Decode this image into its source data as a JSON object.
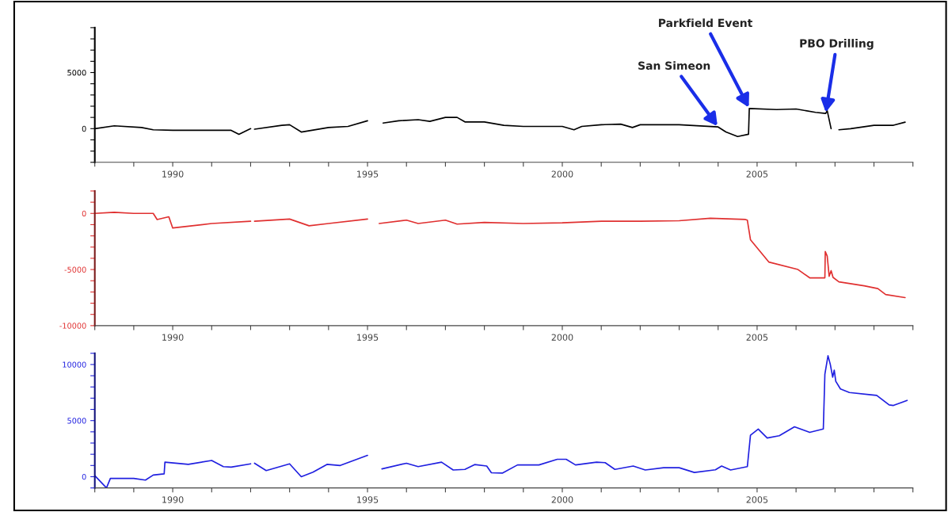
{
  "chart_data": [
    {
      "type": "line",
      "x": [
        1988.0,
        1988.5,
        1989.2,
        1989.5,
        1990.0,
        1991.5,
        1991.7,
        1992.0,
        1992.05,
        1992.1,
        1992.8,
        1993.0,
        1993.3,
        1994.0,
        1994.5,
        1995.0,
        1995.2,
        1995.4,
        1995.8,
        1996.3,
        1996.6,
        1997.0,
        1997.3,
        1997.5,
        1998.0,
        1998.5,
        1999.0,
        2000.0,
        2000.3,
        2000.5,
        2001.0,
        2001.5,
        2001.8,
        2002.0,
        2003.0,
        2004.0,
        2004.2,
        2004.5,
        2004.78,
        2004.8,
        2005.5,
        2006.0,
        2006.5,
        2006.76,
        2006.8,
        2006.9,
        2007.0,
        2007.1,
        2007.4,
        2008.0,
        2008.5,
        2008.8
      ],
      "series": [
        {
          "color": "#000000",
          "values": [
            0,
            250,
            100,
            -100,
            -150,
            -150,
            -500,
            0,
            null,
            -50,
            300,
            350,
            -300,
            100,
            200,
            700,
            null,
            500,
            700,
            800,
            650,
            1000,
            1000,
            600,
            600,
            300,
            200,
            200,
            -100,
            200,
            350,
            400,
            100,
            350,
            350,
            150,
            -300,
            -700,
            -500,
            1800,
            1700,
            1750,
            1450,
            1350,
            1600,
            0,
            null,
            -100,
            0,
            300,
            300,
            580
          ]
        }
      ],
      "xlim": [
        1988,
        2009
      ],
      "ylim": [
        -3000,
        9000
      ],
      "xticks": [
        {
          "value": 1988,
          "label": null
        },
        {
          "value": 1989,
          "label": null
        },
        1990,
        {
          "value": 1991,
          "label": null
        },
        {
          "value": 1992,
          "label": null
        },
        {
          "value": 1993,
          "label": null
        },
        {
          "value": 1994,
          "label": null
        },
        1995,
        {
          "value": 1996,
          "label": null
        },
        {
          "value": 1997,
          "label": null
        },
        {
          "value": 1998,
          "label": null
        },
        {
          "value": 1999,
          "label": null
        },
        2000,
        {
          "value": 2001,
          "label": null
        },
        {
          "value": 2002,
          "label": null
        },
        {
          "value": 2003,
          "label": null
        },
        {
          "value": 2004,
          "label": null
        },
        2005,
        {
          "value": 2006,
          "label": null
        },
        {
          "value": 2007,
          "label": null
        },
        {
          "value": 2008,
          "label": null
        },
        {
          "value": 2009,
          "label": null
        }
      ],
      "yticks": [
        {
          "value": -3000,
          "label": null
        },
        {
          "value": -2000,
          "label": null
        },
        {
          "value": -1000,
          "label": null
        },
        0,
        {
          "value": 1000,
          "label": null
        },
        {
          "value": 2000,
          "label": null
        },
        {
          "value": 3000,
          "label": null
        },
        {
          "value": 4000,
          "label": null
        },
        5000,
        {
          "value": 6000,
          "label": null
        },
        {
          "value": 7000,
          "label": null
        },
        {
          "value": 8000,
          "label": null
        },
        {
          "value": 9000,
          "label": null
        }
      ],
      "annotations": [
        {
          "text": "San Simeon",
          "x": 2004.0,
          "y": 150
        },
        {
          "text": "Parkfield Event",
          "x": 2004.8,
          "y": 1800
        },
        {
          "text": "PBO Drilling",
          "x": 2006.76,
          "y": 1350
        }
      ]
    },
    {
      "type": "line",
      "x": [
        1988.0,
        1988.5,
        1989.0,
        1989.5,
        1989.6,
        1989.9,
        1990.0,
        1991.0,
        1992.0,
        1992.05,
        1992.1,
        1993.0,
        1993.5,
        1994.0,
        1995.0,
        1995.2,
        1995.3,
        1996.0,
        1996.3,
        1997.0,
        1997.3,
        1998.0,
        1999.0,
        2000.0,
        2001.0,
        2002.0,
        2003.0,
        2003.8,
        2004.7,
        2004.75,
        2004.83,
        2005.3,
        2006.05,
        2006.35,
        2006.74,
        2006.75,
        2006.8,
        2006.85,
        2006.9,
        2006.95,
        2007.1,
        2007.75,
        2008.1,
        2008.3,
        2008.8
      ],
      "series": [
        {
          "color": "#e03030",
          "values": [
            0,
            100,
            0,
            0,
            -550,
            -300,
            -1300,
            -900,
            -700,
            null,
            -700,
            -500,
            -1100,
            -900,
            -500,
            null,
            -900,
            -600,
            -900,
            -600,
            -950,
            -800,
            -900,
            -840,
            -700,
            -700,
            -650,
            -430,
            -540,
            -600,
            -2340,
            -4330,
            -5000,
            -5740,
            -5740,
            -3400,
            -3800,
            -5600,
            -5100,
            -5700,
            -6100,
            -6450,
            -6700,
            -7230,
            -7500
          ]
        }
      ],
      "xlim": [
        1988,
        2009
      ],
      "ylim": [
        -10000,
        2000
      ],
      "xticks": [
        {
          "value": 1988,
          "label": null
        },
        {
          "value": 1989,
          "label": null
        },
        1990,
        {
          "value": 1991,
          "label": null
        },
        {
          "value": 1992,
          "label": null
        },
        {
          "value": 1993,
          "label": null
        },
        {
          "value": 1994,
          "label": null
        },
        1995,
        {
          "value": 1996,
          "label": null
        },
        {
          "value": 1997,
          "label": null
        },
        {
          "value": 1998,
          "label": null
        },
        {
          "value": 1999,
          "label": null
        },
        2000,
        {
          "value": 2001,
          "label": null
        },
        {
          "value": 2002,
          "label": null
        },
        {
          "value": 2003,
          "label": null
        },
        {
          "value": 2004,
          "label": null
        },
        2005,
        {
          "value": 2006,
          "label": null
        },
        {
          "value": 2007,
          "label": null
        },
        {
          "value": 2008,
          "label": null
        },
        {
          "value": 2009,
          "label": null
        }
      ],
      "yticks": [
        -10000,
        {
          "value": -9000,
          "label": null
        },
        {
          "value": -8000,
          "label": null
        },
        {
          "value": -7000,
          "label": null
        },
        {
          "value": -6000,
          "label": null
        },
        -5000,
        {
          "value": -4000,
          "label": null
        },
        {
          "value": -3000,
          "label": null
        },
        {
          "value": -2000,
          "label": null
        },
        {
          "value": -1000,
          "label": null
        },
        0,
        {
          "value": 1000,
          "label": null
        },
        {
          "value": 2000,
          "label": null
        }
      ]
    },
    {
      "type": "line",
      "x": [
        1988.0,
        1988.3,
        1988.4,
        1989.0,
        1989.3,
        1989.5,
        1989.78,
        1989.8,
        1990.4,
        1991.0,
        1991.3,
        1991.5,
        1992.0,
        1992.05,
        1992.1,
        1992.4,
        1993.0,
        1993.3,
        1993.6,
        1993.96,
        1994.3,
        1995.0,
        1995.2,
        1995.37,
        1996.0,
        1996.3,
        1996.9,
        1997.2,
        1997.5,
        1997.75,
        1998.06,
        1998.18,
        1998.46,
        1998.85,
        1999.4,
        1999.87,
        2000.1,
        2000.34,
        2000.88,
        2001.1,
        2001.35,
        2001.82,
        2002.13,
        2002.6,
        2003.0,
        2003.39,
        2003.93,
        2004.09,
        2004.32,
        2004.75,
        2004.83,
        2005.03,
        2005.26,
        2005.57,
        2005.96,
        2006.35,
        2006.7,
        2006.74,
        2006.82,
        2006.88,
        2006.94,
        2006.98,
        2007.02,
        2007.14,
        2007.37,
        2007.92,
        2008.07,
        2008.39,
        2008.5,
        2008.85
      ],
      "series": [
        {
          "color": "#2020e0",
          "values": [
            100,
            -1000,
            -150,
            -150,
            -300,
            150,
            250,
            1300,
            1100,
            1450,
            900,
            850,
            1150,
            null,
            1200,
            550,
            1150,
            0,
            400,
            1100,
            1000,
            1900,
            null,
            700,
            1200,
            900,
            1300,
            600,
            650,
            1080,
            950,
            350,
            320,
            1050,
            1050,
            1550,
            1550,
            1050,
            1300,
            1250,
            650,
            950,
            600,
            800,
            800,
            380,
            620,
            950,
            600,
            900,
            3700,
            4250,
            3450,
            3650,
            4450,
            3950,
            4250,
            9130,
            10780,
            10000,
            8870,
            9500,
            8500,
            7820,
            7500,
            7300,
            7250,
            6400,
            6350,
            6800
          ]
        }
      ],
      "xlim": [
        1988,
        2009
      ],
      "ylim": [
        -1000,
        11000
      ],
      "xticks": [
        {
          "value": 1988,
          "label": null
        },
        {
          "value": 1989,
          "label": null
        },
        1990,
        {
          "value": 1991,
          "label": null
        },
        {
          "value": 1992,
          "label": null
        },
        {
          "value": 1993,
          "label": null
        },
        {
          "value": 1994,
          "label": null
        },
        1995,
        {
          "value": 1996,
          "label": null
        },
        {
          "value": 1997,
          "label": null
        },
        {
          "value": 1998,
          "label": null
        },
        {
          "value": 1999,
          "label": null
        },
        2000,
        {
          "value": 2001,
          "label": null
        },
        {
          "value": 2002,
          "label": null
        },
        {
          "value": 2003,
          "label": null
        },
        {
          "value": 2004,
          "label": null
        },
        2005,
        {
          "value": 2006,
          "label": null
        },
        {
          "value": 2007,
          "label": null
        },
        {
          "value": 2008,
          "label": null
        },
        {
          "value": 2009,
          "label": null
        }
      ],
      "yticks": [
        {
          "value": -1000,
          "label": null
        },
        0,
        {
          "value": 1000,
          "label": null
        },
        {
          "value": 2000,
          "label": null
        },
        {
          "value": 3000,
          "label": null
        },
        {
          "value": 4000,
          "label": null
        },
        5000,
        {
          "value": 6000,
          "label": null
        },
        {
          "value": 7000,
          "label": null
        },
        {
          "value": 8000,
          "label": null
        },
        {
          "value": 9000,
          "label": null
        },
        10000,
        {
          "value": 11000,
          "label": null
        }
      ]
    }
  ]
}
